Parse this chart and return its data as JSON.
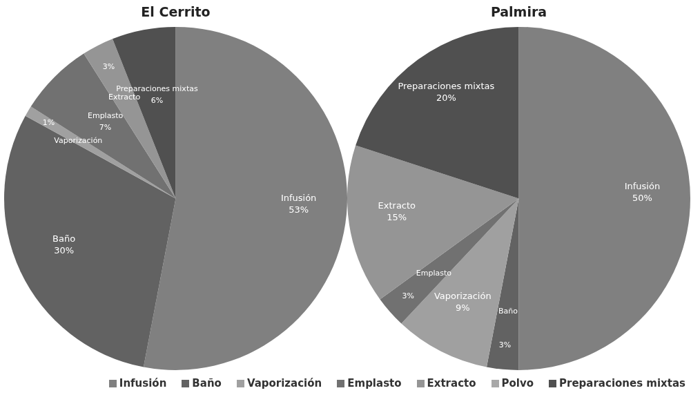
{
  "chart_data": [
    {
      "type": "pie",
      "title": "El Cerrito",
      "categories": [
        "Infusión",
        "Baño",
        "Vaporización",
        "Emplasto",
        "Extracto",
        "Preparaciones mixtas"
      ],
      "values": [
        53,
        30,
        1,
        7,
        3,
        6
      ],
      "value_labels": [
        "53%",
        "30%",
        "1%",
        "7%",
        "3%",
        "6%"
      ],
      "colors": [
        "#808080",
        "#626262",
        "#a0a0a0",
        "#717171",
        "#959595",
        "#505050"
      ],
      "legend": false
    },
    {
      "type": "pie",
      "title": "Palmira",
      "categories": [
        "Infusión",
        "Baño",
        "Vaporización",
        "Emplasto",
        "Extracto",
        "Polvo",
        "Preparaciones mixtas"
      ],
      "values": [
        50,
        3,
        9,
        3,
        15,
        0,
        20
      ],
      "value_labels": [
        "50%",
        "3%",
        "9%",
        "3%",
        "15%",
        null,
        "20%"
      ],
      "colors": [
        "#808080",
        "#626262",
        "#a0a0a0",
        "#717171",
        "#959595",
        "#a8a8a8",
        "#505050"
      ],
      "legend": "bottom"
    }
  ]
}
